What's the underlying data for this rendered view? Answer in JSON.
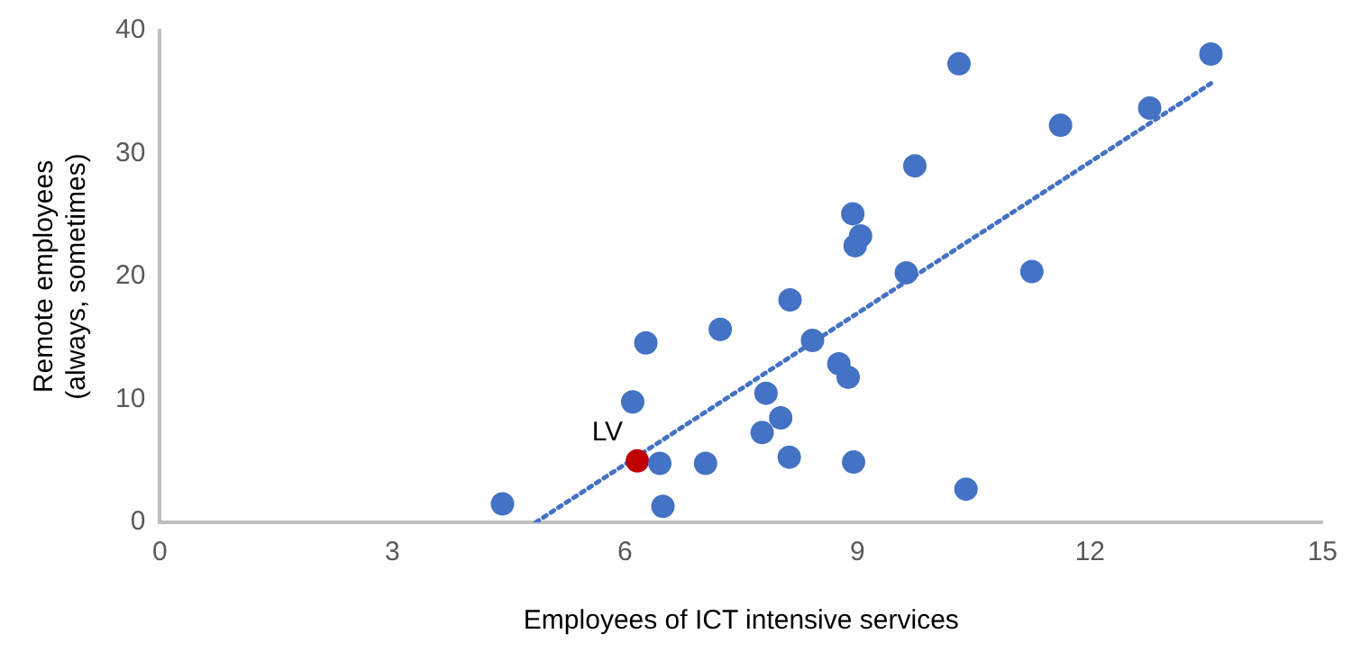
{
  "chart_data": {
    "type": "scatter",
    "xlabel": "Employees of ICT intensive services",
    "ylabel": "Remote employees\n(always, sometimes)",
    "xlim": [
      0,
      15
    ],
    "xticks": [
      0,
      3,
      6,
      9,
      12,
      15
    ],
    "ylim": [
      0,
      40
    ],
    "yticks": [
      0,
      10,
      20,
      30,
      40
    ],
    "grid": false,
    "legend": false,
    "marker": "circle",
    "series": [
      {
        "x": [
          4.42,
          6.1,
          6.27,
          6.16,
          6.45,
          6.49,
          7.04,
          7.23,
          7.77,
          7.82,
          8.01,
          8.12,
          8.13,
          8.42,
          8.76,
          8.88,
          8.94,
          9.04,
          8.97,
          8.95,
          10.4,
          11.25,
          9.63,
          9.74,
          10.31,
          11.62,
          12.77,
          13.56
        ],
        "values": [
          1.5,
          9.8,
          14.6,
          5.0,
          4.8,
          1.3,
          4.8,
          15.7,
          7.3,
          10.5,
          8.5,
          5.3,
          18.1,
          14.8,
          12.9,
          11.8,
          25.1,
          23.3,
          22.5,
          4.9,
          2.7,
          20.4,
          20.3,
          29.0,
          37.3,
          32.3,
          33.7,
          38.1
        ],
        "colors": [
          "#4472c4",
          "#4472c4",
          "#4472c4",
          "#c00000",
          "#4472c4",
          "#4472c4",
          "#4472c4",
          "#4472c4",
          "#4472c4",
          "#4472c4",
          "#4472c4",
          "#4472c4",
          "#4472c4",
          "#4472c4",
          "#4472c4",
          "#4472c4",
          "#4472c4",
          "#4472c4",
          "#4472c4",
          "#4472c4",
          "#4472c4",
          "#4472c4",
          "#4472c4",
          "#4472c4",
          "#4472c4",
          "#4472c4",
          "#4472c4",
          "#4472c4"
        ]
      },
      {
        "type": "line",
        "color": "#4472c4",
        "line_style": "dotted",
        "marker": "none",
        "x": [
          4.85,
          13.56
        ],
        "values": [
          0,
          35.7
        ]
      }
    ],
    "annotations": [
      {
        "text": "LV",
        "x": 6.16,
        "y": 5.0
      }
    ]
  }
}
